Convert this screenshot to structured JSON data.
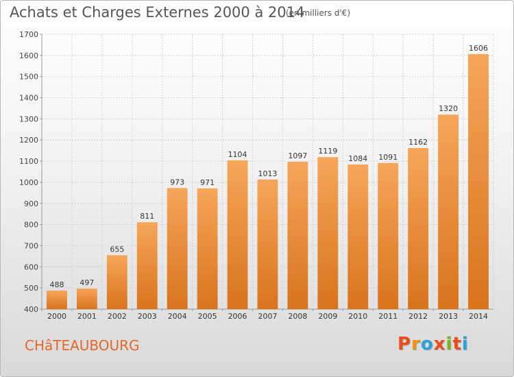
{
  "header": {
    "title": "Achats et Charges Externes 2000 à 2014",
    "subtitle": "(en milliers d'€)"
  },
  "footer": {
    "city": "CHâTEAUBOURG",
    "logo_text": "Proxiti"
  },
  "colors": {
    "bar_top": "#f6a65a",
    "bar_bottom": "#d9731c",
    "city_text": "#e06a2c",
    "logo_letters": [
      "#e94e1b",
      "#f39200",
      "#2aa3dd",
      "#e94e1b",
      "#7ab51d",
      "#e94e1b",
      "#2aa3dd"
    ]
  },
  "chart_data": {
    "type": "bar",
    "categories": [
      "2000",
      "2001",
      "2002",
      "2003",
      "2004",
      "2005",
      "2006",
      "2007",
      "2008",
      "2009",
      "2010",
      "2011",
      "2012",
      "2013",
      "2014"
    ],
    "values": [
      488,
      497,
      655,
      811,
      973,
      971,
      1104,
      1013,
      1097,
      1119,
      1084,
      1091,
      1162,
      1320,
      1606
    ],
    "ylim": [
      400,
      1700
    ],
    "yticks": [
      400,
      500,
      600,
      700,
      800,
      900,
      1000,
      1100,
      1200,
      1300,
      1400,
      1500,
      1600,
      1700
    ],
    "grid": true,
    "legend": "none"
  }
}
